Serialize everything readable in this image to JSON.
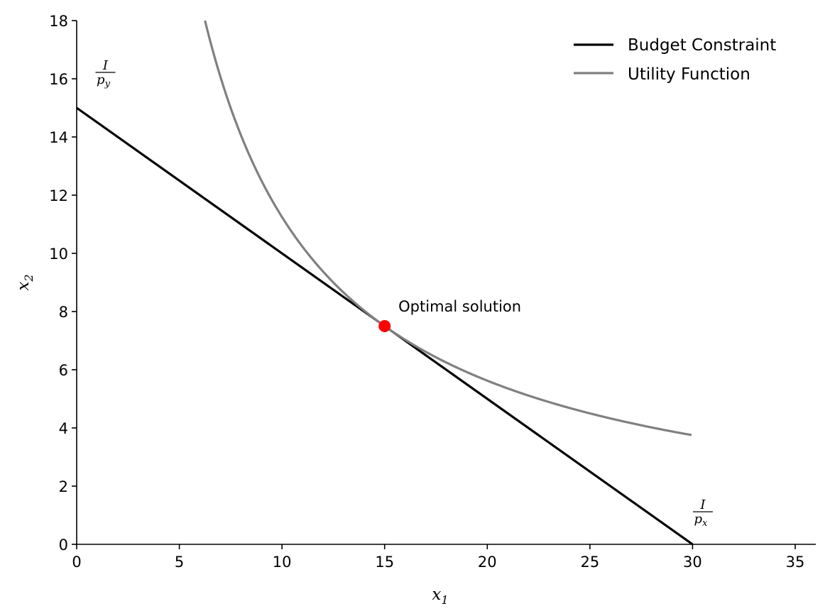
{
  "chart_data": {
    "type": "line",
    "title": "",
    "xlabel": {
      "base": "x",
      "sub": "1"
    },
    "ylabel": {
      "base": "x",
      "sub": "2"
    },
    "xlim": [
      0,
      36
    ],
    "ylim": [
      0,
      18
    ],
    "xticks": [
      0,
      5,
      10,
      15,
      20,
      25,
      30,
      35
    ],
    "yticks": [
      0,
      2,
      4,
      6,
      8,
      10,
      12,
      14,
      16,
      18
    ],
    "grid": false,
    "legend_position": "top-right",
    "series": [
      {
        "name": "Budget Constraint",
        "color": "#000000",
        "x": [
          0,
          30
        ],
        "y": [
          15,
          0
        ]
      },
      {
        "name": "Utility Function",
        "color": "#808080",
        "x": [
          6.25,
          7,
          8,
          9,
          10,
          11,
          12,
          13,
          14,
          15,
          16,
          17,
          18,
          20,
          22,
          24,
          26,
          28,
          30
        ],
        "y": [
          18,
          16.07,
          14.06,
          12.5,
          11.25,
          10.23,
          9.38,
          8.65,
          8.04,
          7.5,
          7.03,
          6.62,
          6.25,
          5.63,
          5.11,
          4.69,
          4.33,
          4.02,
          3.75
        ]
      }
    ],
    "optimal_point": {
      "x": 15,
      "y": 7.5,
      "color": "#ff0000"
    },
    "annotations": [
      {
        "text": "Optimal solution",
        "x": 15.5,
        "y": 8.0
      }
    ],
    "fraction_labels": [
      {
        "numerator": "I",
        "denominator_base": "p",
        "denominator_sub": "y",
        "x": 1.4,
        "y": 16.0
      },
      {
        "numerator": "I",
        "denominator_base": "p",
        "denominator_sub": "x",
        "x": 30.5,
        "y": 0.9
      }
    ]
  }
}
